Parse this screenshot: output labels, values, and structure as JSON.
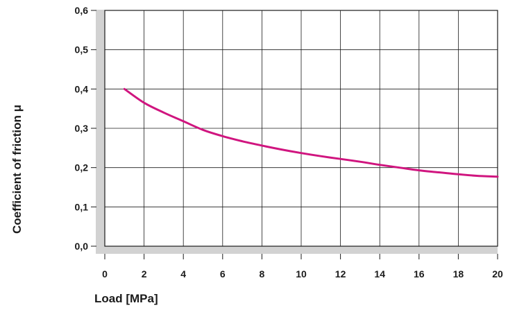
{
  "chart_data": {
    "type": "line",
    "title": "",
    "xlabel": "Load [MPa]",
    "ylabel": "Coefficient of friction μ",
    "xlim": [
      0,
      20
    ],
    "ylim": [
      0,
      0.6
    ],
    "x_ticks": [
      "0",
      "2",
      "4",
      "6",
      "8",
      "10",
      "12",
      "14",
      "16",
      "18",
      "20"
    ],
    "y_ticks": [
      "0,0",
      "0,1",
      "0,2",
      "0,3",
      "0,4",
      "0,5",
      "0,6"
    ],
    "grid": true,
    "series": [
      {
        "color": "#d0157f",
        "x": [
          1,
          2,
          3,
          4,
          5,
          6,
          7,
          8,
          9,
          10,
          11,
          12,
          13,
          14,
          15,
          16,
          17,
          18,
          19,
          20
        ],
        "y": [
          0.4,
          0.365,
          0.34,
          0.318,
          0.296,
          0.28,
          0.267,
          0.256,
          0.246,
          0.237,
          0.229,
          0.222,
          0.215,
          0.207,
          0.2,
          0.193,
          0.188,
          0.183,
          0.179,
          0.177
        ]
      }
    ]
  }
}
